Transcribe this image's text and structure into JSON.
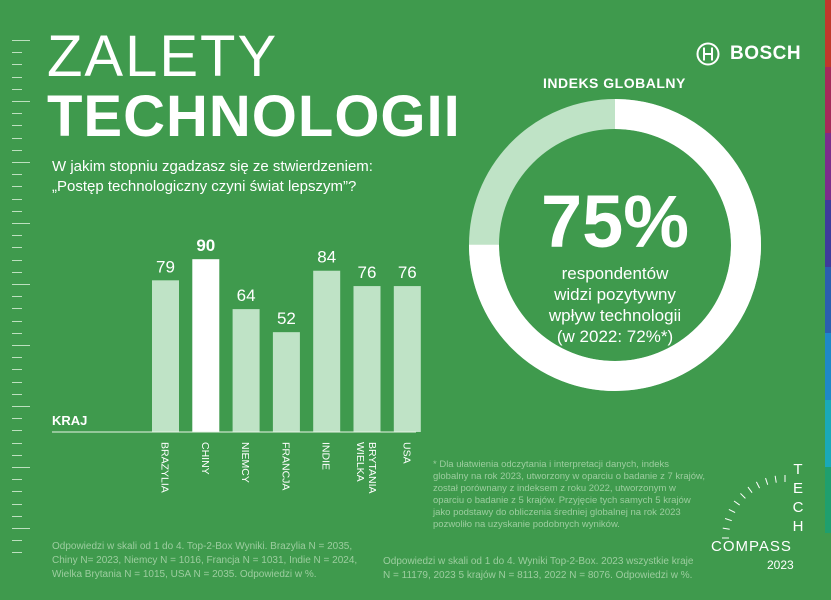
{
  "header": {
    "title_line1": "ZALETY",
    "title_line2": "TECHNOLOGII",
    "question_line1": "W jakim stopniu zgadzasz się ze stwierdzeniem:",
    "question_line2": "„Postęp technologiczny czyni świat lepszym”?"
  },
  "brand": {
    "name": "BOSCH",
    "icon": "bosch-armature-icon"
  },
  "global_index": {
    "label": "INDEKS GLOBALNY",
    "value_text": "75%",
    "value": 75,
    "line1": "respondentów",
    "line2": "widzi pozytywny",
    "line3": "wpływ technologii",
    "line4": "(w 2022: 72%*)"
  },
  "chart_data": {
    "type": "bar",
    "x_axis_title": "KRAJ",
    "categories": [
      "BRAZYLIA",
      "CHINY",
      "NIEMCY",
      "FRANCJA",
      "INDIE",
      "WIELKA BRYTANIA",
      "USA"
    ],
    "category_lines": [
      [
        "BRAZYLIA"
      ],
      [
        "CHINY"
      ],
      [
        "NIEMCY"
      ],
      [
        "FRANCJA"
      ],
      [
        "INDIE"
      ],
      [
        "WIELKA",
        "BRYTANIA"
      ],
      [
        "USA"
      ]
    ],
    "values": [
      79,
      90,
      64,
      52,
      84,
      76,
      76
    ],
    "highlight": "CHINY",
    "ylim": [
      0,
      100
    ]
  },
  "notes": {
    "footnote": "* Dla ułatwienia odczytania i interpretacji danych, indeks globalny na rok 2023, utworzony w oparciu o badanie z 7 krajów, został porównany z indeksem z roku 2022, utworzonym w oparciu o badanie z 5 krajów. Przyjęcie tych samych 5 krajów jako podstawy do obliczenia średniej globalnej na rok 2023 pozwoliło na uzyskanie podobnych wyników.",
    "source_left": "Odpowiedzi w skali od 1 do 4. Top-2-Box Wyniki. Brazylia N = 2035, Chiny N= 2023, Niemcy N = 1016, Francja N = 1031, Indie N = 2024, Wielka Brytania N = 1015, USA N = 2035. Odpowiedzi w %.",
    "source_right": "Odpowiedzi w skali od 1 do 4. Wyniki Top-2-Box. 2023 wszystkie kraje N = 11179, 2023 5 krajów N = 8113, 2022 N = 8076. Odpowiedzi w %."
  },
  "logo": {
    "tech": "TECH",
    "compass": "COMPASS",
    "year": "2023"
  },
  "colors": {
    "background": "#3f9a4d",
    "bar": "#bfe3c6",
    "bar_highlight": "#ffffff",
    "ring_track": "#bfe3c6",
    "ring_fill": "#ffffff",
    "rainbow": [
      "#c0392b",
      "#a52a5a",
      "#7b2d8b",
      "#3d3c9c",
      "#2a5fb0",
      "#1e88c8",
      "#19a9b8",
      "#1f9f6e",
      "#3f9a4d"
    ]
  }
}
